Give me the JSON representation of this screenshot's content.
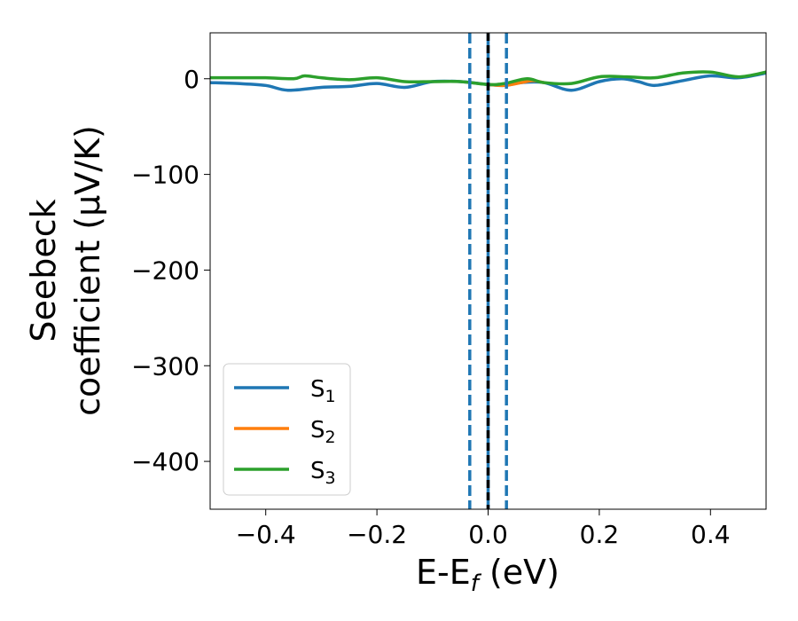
{
  "chart_data": {
    "type": "line",
    "title": "",
    "xlabel": {
      "main": "E-E",
      "sub": "f",
      "unit": " (eV)"
    },
    "ylabel": {
      "line1": "Seebeck",
      "line2": "coefficient  (μV/K)"
    },
    "xlim": [
      -0.5,
      0.5
    ],
    "ylim": [
      -450,
      48
    ],
    "xticks": [
      -0.4,
      -0.2,
      0.0,
      0.2,
      0.4
    ],
    "xtick_labels": [
      "−0.4",
      "−0.2",
      "0.0",
      "0.2",
      "0.4"
    ],
    "yticks": [
      0,
      -100,
      -200,
      -300,
      -400
    ],
    "ytick_labels": [
      "0",
      "−100",
      "−200",
      "−300",
      "−400"
    ],
    "grid": false,
    "legend_position": "lower-left",
    "series": [
      {
        "name": "S",
        "sub": "1",
        "color": "#1f77b4",
        "x": [
          -0.5,
          -0.45,
          -0.4,
          -0.36,
          -0.3,
          -0.25,
          -0.2,
          -0.15,
          -0.1,
          -0.05,
          0.0,
          0.03,
          0.06,
          0.1,
          0.15,
          0.2,
          0.24,
          0.27,
          0.3,
          0.35,
          0.4,
          0.45,
          0.5
        ],
        "y": [
          -4,
          -5,
          -7,
          -12,
          -9,
          -8,
          -5,
          -9,
          -3,
          -3,
          -6,
          -7,
          -4,
          -4,
          -12,
          -3,
          0,
          -3,
          -7,
          -2,
          3,
          1,
          6
        ]
      },
      {
        "name": "S",
        "sub": "2",
        "color": "#ff7f0e",
        "x": [
          0.0,
          0.03,
          0.06,
          0.08,
          0.1
        ],
        "y": [
          -6,
          -7,
          -4,
          -2,
          -4
        ]
      },
      {
        "name": "S",
        "sub": "3",
        "color": "#2ca02c",
        "x": [
          -0.5,
          -0.45,
          -0.4,
          -0.35,
          -0.33,
          -0.3,
          -0.25,
          -0.2,
          -0.15,
          -0.1,
          -0.05,
          0.0,
          0.03,
          0.07,
          0.1,
          0.15,
          0.2,
          0.25,
          0.3,
          0.35,
          0.4,
          0.45,
          0.5
        ],
        "y": [
          1,
          1,
          1,
          0,
          3,
          1,
          -1,
          1,
          -3,
          -3,
          -3,
          -6,
          -5,
          0,
          -4,
          -5,
          2,
          2,
          1,
          6,
          7,
          2,
          7
        ]
      }
    ],
    "vlines": [
      {
        "x": -0.033,
        "style": "dashed",
        "color": "#1f77b4"
      },
      {
        "x": 0.0,
        "style": "solid",
        "color": "#1f77b4"
      },
      {
        "x": 0.0,
        "style": "dashed",
        "color": "#000000"
      },
      {
        "x": 0.033,
        "style": "dashed",
        "color": "#1f77b4"
      }
    ]
  }
}
